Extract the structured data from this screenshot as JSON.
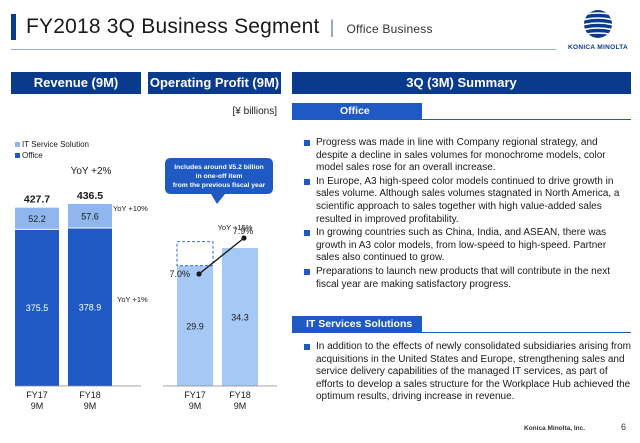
{
  "header": {
    "title": "FY2018 3Q Business Segment",
    "separator": "|",
    "subtitle": "Office Business",
    "logo_text": "KONICA MINOLTA"
  },
  "panels": {
    "revenue": "Revenue (9M)",
    "op_profit": "Operating Profit (9M)",
    "summary": "3Q (3M) Summary"
  },
  "unit_label": "[¥ billions]",
  "legend": {
    "it_service": "IT Service Solution",
    "office": "Office"
  },
  "colors": {
    "navy": "#0a3a8c",
    "office_dark": "#1f5ac4",
    "it_light": "#8fb6ef",
    "op_bar": "#a6c8f5",
    "callout": "#1f5ac4"
  },
  "chart_data": [
    {
      "type": "bar",
      "stacked": true,
      "categories": [
        "FY17\n9M",
        "FY18\n9M"
      ],
      "series": [
        {
          "name": "Office",
          "values": [
            375.5,
            378.9
          ]
        },
        {
          "name": "IT Service Solution",
          "values": [
            52.2,
            57.6
          ]
        }
      ],
      "totals": [
        427.7,
        436.5
      ],
      "annotations": {
        "total_yoy": "YoY +2%",
        "it_yoy": "YoY +10%",
        "office_yoy": "YoY +1%"
      }
    },
    {
      "type": "bar",
      "categories": [
        "FY17\n9M",
        "FY18\n9M"
      ],
      "values": [
        29.9,
        34.3
      ],
      "margin_line": {
        "values_pct": [
          7.0,
          7.9
        ],
        "labels": [
          "7.0%",
          "7.9%"
        ]
      },
      "annotations": {
        "op_yoy": "YoY +15%",
        "callout": [
          "Includes around ¥5.2 billion",
          "in one-off item",
          "from the previous fiscal year"
        ]
      }
    }
  ],
  "summary": {
    "office": {
      "heading": "Office",
      "bullets": [
        "Progress was made in line with Company regional strategy, and despite a decline in sales volumes for monochrome models, color model sales rose for an overall increase.",
        "In Europe, A3 high-speed color models continued to drive growth in sales volume. Although sales volumes stagnated in North America, a scientific approach to sales together with high value-added sales resulted in improved profitability.",
        "In growing countries such as China, India, and ASEAN, there was growth in A3 color models, from low-speed to high-speed. Partner sales also continued to grow.",
        "Preparations to launch new products that will contribute in the next fiscal year are making satisfactory progress."
      ]
    },
    "it": {
      "heading": "IT Services Solutions",
      "bullets": [
        "In addition to the effects of newly consolidated subsidiaries arising from acquisitions in the United States and Europe, strengthening sales and service delivery capabilities of the managed IT services, as part of efforts to develop a sales structure for the Workplace Hub achieved the optimum results, driving increase in revenue."
      ]
    }
  },
  "footer": {
    "company": "Konica Minolta, Inc.",
    "page": "6"
  }
}
